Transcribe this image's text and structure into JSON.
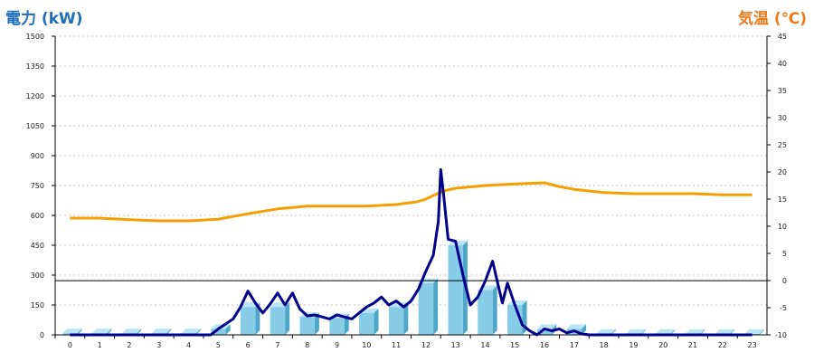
{
  "chart_data": {
    "type": "bar",
    "title_left": "電力 (kW)",
    "title_right": "気温 (℃)",
    "categories": [
      "0",
      "1",
      "2",
      "3",
      "4",
      "5",
      "6",
      "7",
      "8",
      "9",
      "10",
      "11",
      "12",
      "13",
      "14",
      "15",
      "16",
      "17",
      "18",
      "19",
      "20",
      "21",
      "22",
      "23"
    ],
    "y_left": {
      "ylim": [
        0,
        1500
      ],
      "ticks": [
        0,
        150,
        300,
        450,
        600,
        750,
        900,
        1050,
        1200,
        1350,
        1500
      ]
    },
    "y_right": {
      "ylim": [
        -10,
        45
      ],
      "ticks": [
        -10,
        -5,
        0,
        5,
        10,
        15,
        20,
        25,
        30,
        35,
        40,
        45
      ]
    },
    "reference_line_left_value": 272,
    "grid": true,
    "colors": {
      "bar": "#87cde8",
      "bar_side": "#4ea6c9",
      "bar_top": "#b9e4f4",
      "power_line": "#00008b",
      "temp_line": "#f5a000",
      "grid": "#c8c8c8",
      "left_title": "#1f6fb8",
      "right_title": "#f07a1a"
    },
    "series": [
      {
        "name": "hourly_power_bars",
        "type": "bar",
        "values": [
          8,
          8,
          8,
          8,
          8,
          30,
          140,
          140,
          90,
          85,
          110,
          140,
          260,
          450,
          225,
          150,
          30,
          30,
          5,
          5,
          5,
          5,
          5,
          5
        ]
      },
      {
        "name": "power_detail_line",
        "type": "line",
        "x": [
          0,
          0.5,
          1,
          1.5,
          2,
          2.5,
          3,
          3.5,
          4,
          4.5,
          4.75,
          5,
          5.25,
          5.5,
          5.75,
          6,
          6.25,
          6.5,
          6.75,
          7,
          7.25,
          7.5,
          7.75,
          8,
          8.25,
          8.5,
          8.75,
          9,
          9.25,
          9.5,
          9.75,
          10,
          10.25,
          10.5,
          10.75,
          11,
          11.25,
          11.5,
          11.75,
          12,
          12.25,
          12.35,
          12.42,
          12.5,
          12.6,
          12.75,
          13,
          13.25,
          13.5,
          13.75,
          14,
          14.25,
          14.42,
          14.58,
          14.75,
          15,
          15.25,
          15.5,
          15.75,
          16,
          16.25,
          16.5,
          16.75,
          17,
          17.25,
          17.5,
          18,
          19,
          20,
          21,
          22,
          23
        ],
        "values": [
          0,
          0,
          0,
          0,
          0,
          0,
          0,
          0,
          0,
          0,
          0,
          30,
          55,
          80,
          140,
          220,
          160,
          110,
          155,
          210,
          150,
          210,
          130,
          95,
          100,
          90,
          80,
          100,
          90,
          80,
          110,
          140,
          160,
          190,
          150,
          170,
          140,
          170,
          230,
          320,
          400,
          500,
          570,
          830,
          700,
          480,
          470,
          300,
          150,
          190,
          270,
          370,
          260,
          160,
          260,
          150,
          50,
          20,
          0,
          30,
          20,
          30,
          10,
          20,
          5,
          0,
          0,
          0,
          0,
          0,
          0,
          0
        ]
      },
      {
        "name": "temperature",
        "type": "line",
        "axis": "right",
        "x": [
          0,
          1,
          2,
          3,
          4,
          5,
          6,
          7,
          8,
          9,
          10,
          11,
          11.7,
          12,
          12.3,
          12.6,
          13,
          14,
          15,
          16,
          16.5,
          17,
          18,
          19,
          20,
          21,
          22,
          23
        ],
        "values": [
          11.5,
          11.5,
          11.2,
          11,
          11,
          11.3,
          12.3,
          13.2,
          13.7,
          13.7,
          13.7,
          14,
          14.5,
          15,
          15.8,
          16.5,
          17,
          17.5,
          17.8,
          18,
          17.3,
          16.8,
          16.2,
          16,
          16,
          16,
          15.8,
          15.8
        ]
      }
    ]
  }
}
